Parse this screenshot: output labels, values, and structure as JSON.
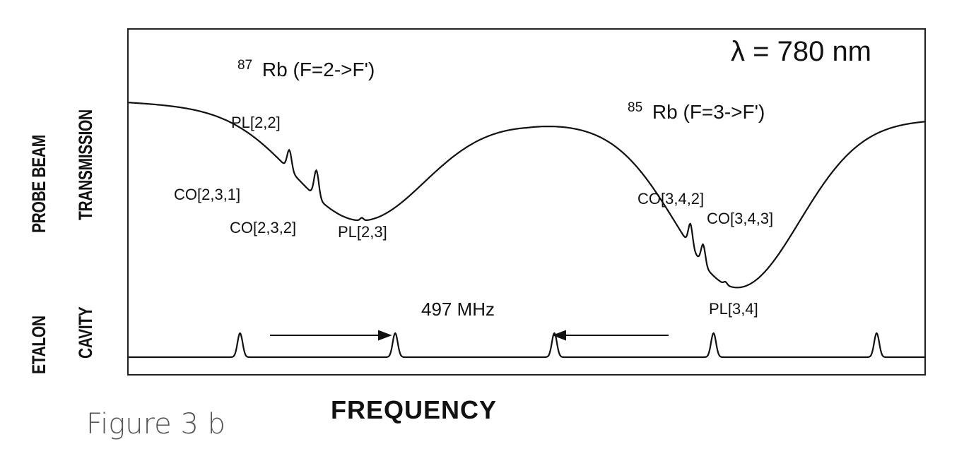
{
  "caption": "Figure 3 b",
  "chart_data": {
    "type": "line",
    "title": "",
    "xlabel": "FREQUENCY",
    "ylabel_upper": [
      "PROBE BEAM",
      "TRANSMISSION"
    ],
    "ylabel_lower": [
      "ETALON",
      "CAVITY"
    ],
    "wavelength_label": "λ = 780 nm",
    "grid": false,
    "legend": "none",
    "series": [
      {
        "description_id": "transmission",
        "shape": {
          "baseline_left": 0.82,
          "dip1": {
            "center": 0.29,
            "depth": 0.4,
            "width": 0.1
          },
          "dip2": {
            "center": 0.76,
            "depth": 0.66,
            "width": 0.095
          },
          "baseline_right": 0.88
        }
      },
      {
        "description_id": "etalon",
        "peaks_at": [
          0.14,
          0.335,
          0.535,
          0.735,
          0.94
        ]
      }
    ],
    "annotations": [
      {
        "id": "rb87",
        "sup": "87",
        "text": "Rb (F=2->F')"
      },
      {
        "id": "rb85",
        "sup": "85",
        "text": "Rb (F=3->F')"
      },
      {
        "id": "pl22",
        "text": "PL[2,2]"
      },
      {
        "id": "co231",
        "text": "CO[2,3,1]"
      },
      {
        "id": "co232",
        "text": "CO[2,3,2]"
      },
      {
        "id": "pl23",
        "text": "PL[2,3]"
      },
      {
        "id": "co342",
        "text": "CO[3,4,2]"
      },
      {
        "id": "co343",
        "text": "CO[3,4,3]"
      },
      {
        "id": "pl34",
        "text": "PL[3,4]"
      },
      {
        "id": "fsr",
        "text": "497 MHz"
      }
    ]
  }
}
